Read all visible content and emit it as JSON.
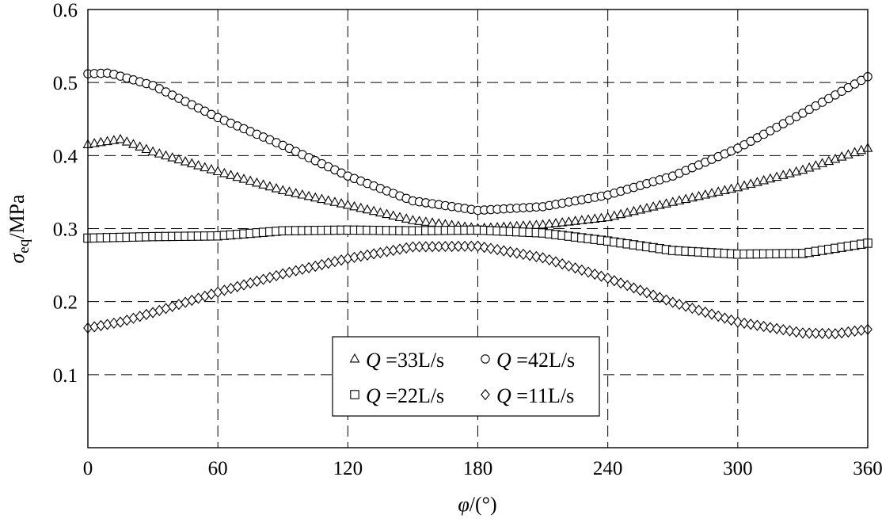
{
  "chart_data": {
    "type": "scatter",
    "xlabel": {
      "symbol": "φ",
      "unit": "/(°)"
    },
    "ylabel": {
      "symbol": "σ",
      "subscript": "eq",
      "unit": "/MPa"
    },
    "xlim": [
      0,
      360
    ],
    "ylim": [
      0,
      0.6
    ],
    "xticks": [
      "0",
      "60",
      "120",
      "180",
      "240",
      "300",
      "360"
    ],
    "yticks": [
      "0.1",
      "0.2",
      "0.3",
      "0.4",
      "0.5",
      "0.6"
    ],
    "grid": "dashed",
    "legend_position": "bottom-center",
    "series": [
      {
        "name": "Q =33L/s",
        "var": "Q",
        "rest": " =33L/s",
        "marker": "triangle",
        "x": [
          0,
          15,
          30,
          60,
          90,
          120,
          150,
          180,
          210,
          240,
          270,
          300,
          330,
          360
        ],
        "y": [
          0.415,
          0.422,
          0.405,
          0.378,
          0.352,
          0.332,
          0.311,
          0.3,
          0.305,
          0.315,
          0.336,
          0.356,
          0.38,
          0.41
        ]
      },
      {
        "name": "Q =42L/s",
        "var": "Q",
        "rest": " =42L/s",
        "marker": "circle",
        "x": [
          0,
          10,
          30,
          60,
          90,
          120,
          150,
          180,
          210,
          240,
          270,
          300,
          330,
          360
        ],
        "y": [
          0.512,
          0.513,
          0.496,
          0.452,
          0.414,
          0.372,
          0.338,
          0.325,
          0.33,
          0.346,
          0.372,
          0.41,
          0.458,
          0.508
        ]
      },
      {
        "name": "Q =22L/s",
        "var": "Q",
        "rest": " =22L/s",
        "marker": "square",
        "x": [
          0,
          30,
          60,
          90,
          120,
          150,
          180,
          210,
          240,
          270,
          300,
          330,
          360
        ],
        "y": [
          0.287,
          0.289,
          0.29,
          0.297,
          0.298,
          0.297,
          0.298,
          0.294,
          0.283,
          0.27,
          0.265,
          0.266,
          0.28
        ]
      },
      {
        "name": "Q =11L/s",
        "var": "Q",
        "rest": " =11L/s",
        "marker": "diamond",
        "x": [
          0,
          15,
          30,
          60,
          90,
          120,
          150,
          180,
          210,
          240,
          270,
          300,
          330,
          345,
          360
        ],
        "y": [
          0.164,
          0.172,
          0.185,
          0.213,
          0.238,
          0.259,
          0.275,
          0.276,
          0.26,
          0.232,
          0.199,
          0.172,
          0.157,
          0.156,
          0.162
        ]
      }
    ]
  }
}
